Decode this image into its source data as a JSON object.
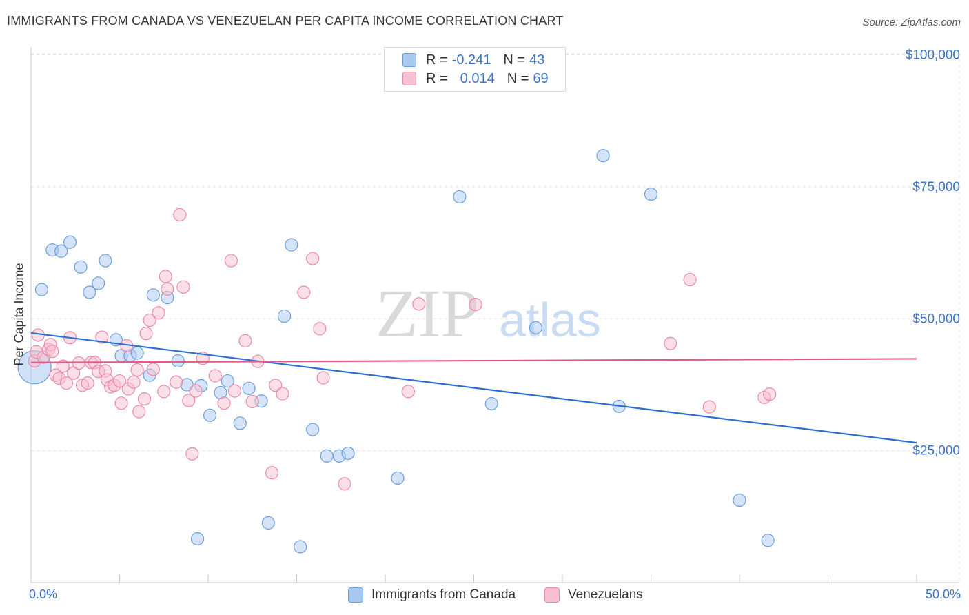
{
  "title": "IMMIGRANTS FROM CANADA VS VENEZUELAN PER CAPITA INCOME CORRELATION CHART",
  "source": "Source: ZipAtlas.com",
  "watermark": {
    "zip": "ZIP",
    "atlas": "atlas"
  },
  "legend": {
    "rows": [
      {
        "r_label": "R =",
        "r_value": "-0.241",
        "n_label": "N =",
        "n_value": "43",
        "color": "#a9c8f0"
      },
      {
        "r_label": "R =",
        "r_value": "0.014",
        "n_label": "N =",
        "n_value": "69",
        "color": "#f7bfd0"
      }
    ]
  },
  "bottom_legend": {
    "canada": "Immigrants from Canada",
    "venezuelans": "Venezuelans"
  },
  "axis": {
    "x_min_label": "0.0%",
    "x_max_label": "50.0%",
    "y_title": "Per Capita Income",
    "y_ticks": [
      {
        "value": 25000,
        "label": "$25,000"
      },
      {
        "value": 50000,
        "label": "$50,000"
      },
      {
        "value": 75000,
        "label": "$75,000"
      },
      {
        "value": 100000,
        "label": "$100,000"
      }
    ]
  },
  "chart_data": {
    "type": "scatter",
    "title": "IMMIGRANTS FROM CANADA VS VENEZUELAN PER CAPITA INCOME CORRELATION CHART",
    "xlabel": "",
    "ylabel": "Per Capita Income",
    "xlim": [
      0,
      50
    ],
    "ylim": [
      0,
      100000
    ],
    "grid": true,
    "series": [
      {
        "name": "Immigrants from Canada",
        "color": "#a9c8f0",
        "stroke": "#6b9fdc",
        "trend": {
          "x": [
            0,
            50
          ],
          "y": [
            47300,
            26500
          ],
          "color": "#2d6fd0"
        },
        "points": [
          [
            0.2,
            40800
          ],
          [
            0.6,
            55500
          ],
          [
            1.2,
            63000
          ],
          [
            1.7,
            62800
          ],
          [
            2.2,
            64500
          ],
          [
            2.8,
            59800
          ],
          [
            3.3,
            55000
          ],
          [
            3.8,
            56700
          ],
          [
            4.2,
            61000
          ],
          [
            4.8,
            46000
          ],
          [
            5.1,
            43000
          ],
          [
            5.6,
            43000
          ],
          [
            6.0,
            43500
          ],
          [
            6.7,
            39300
          ],
          [
            6.9,
            54500
          ],
          [
            7.7,
            54000
          ],
          [
            8.3,
            42000
          ],
          [
            8.8,
            37500
          ],
          [
            9.4,
            8300
          ],
          [
            9.6,
            37300
          ],
          [
            10.1,
            31700
          ],
          [
            10.7,
            36000
          ],
          [
            11.1,
            38200
          ],
          [
            11.8,
            30200
          ],
          [
            12.3,
            36800
          ],
          [
            13.0,
            34400
          ],
          [
            13.4,
            11300
          ],
          [
            14.3,
            50500
          ],
          [
            14.7,
            64000
          ],
          [
            15.2,
            6800
          ],
          [
            15.9,
            29000
          ],
          [
            16.7,
            24000
          ],
          [
            17.4,
            24000
          ],
          [
            17.9,
            24500
          ],
          [
            20.7,
            19800
          ],
          [
            24.2,
            73100
          ],
          [
            26.0,
            33900
          ],
          [
            28.5,
            48300
          ],
          [
            32.3,
            80900
          ],
          [
            33.2,
            33400
          ],
          [
            35.0,
            73600
          ],
          [
            40.0,
            15600
          ],
          [
            41.6,
            8000
          ]
        ]
      },
      {
        "name": "Venezuelans",
        "color": "#f7bfd0",
        "stroke": "#ea8aa8",
        "trend": {
          "x": [
            0,
            50
          ],
          "y": [
            41700,
            42400
          ],
          "color": "#e3598a"
        },
        "points": [
          [
            0.2,
            42000
          ],
          [
            0.3,
            43700
          ],
          [
            0.4,
            46900
          ],
          [
            0.7,
            42700
          ],
          [
            1.0,
            44200
          ],
          [
            1.1,
            45100
          ],
          [
            1.2,
            43800
          ],
          [
            1.4,
            39300
          ],
          [
            1.6,
            38700
          ],
          [
            1.8,
            41000
          ],
          [
            2.0,
            37800
          ],
          [
            2.2,
            46400
          ],
          [
            2.4,
            39700
          ],
          [
            2.7,
            41600
          ],
          [
            2.9,
            37400
          ],
          [
            3.2,
            37800
          ],
          [
            3.4,
            41700
          ],
          [
            3.6,
            41700
          ],
          [
            3.8,
            40000
          ],
          [
            4.0,
            46500
          ],
          [
            4.2,
            40100
          ],
          [
            4.3,
            38400
          ],
          [
            4.5,
            37100
          ],
          [
            4.7,
            37400
          ],
          [
            5.0,
            38200
          ],
          [
            5.1,
            34000
          ],
          [
            5.4,
            44900
          ],
          [
            5.5,
            36700
          ],
          [
            5.8,
            38000
          ],
          [
            6.0,
            40300
          ],
          [
            6.1,
            32400
          ],
          [
            6.4,
            34800
          ],
          [
            6.5,
            47200
          ],
          [
            6.7,
            49700
          ],
          [
            6.9,
            40400
          ],
          [
            7.2,
            51100
          ],
          [
            7.5,
            36200
          ],
          [
            7.6,
            58000
          ],
          [
            7.7,
            55600
          ],
          [
            8.2,
            38000
          ],
          [
            8.4,
            69700
          ],
          [
            8.6,
            56000
          ],
          [
            8.9,
            34500
          ],
          [
            9.1,
            24400
          ],
          [
            9.3,
            36300
          ],
          [
            9.7,
            42500
          ],
          [
            10.4,
            39200
          ],
          [
            10.9,
            34000
          ],
          [
            11.3,
            61000
          ],
          [
            11.5,
            36300
          ],
          [
            12.1,
            45800
          ],
          [
            12.5,
            34300
          ],
          [
            12.8,
            41900
          ],
          [
            13.6,
            20800
          ],
          [
            13.8,
            37400
          ],
          [
            14.2,
            35800
          ],
          [
            15.4,
            55000
          ],
          [
            15.9,
            61400
          ],
          [
            16.3,
            48100
          ],
          [
            16.5,
            38800
          ],
          [
            17.7,
            18700
          ],
          [
            21.3,
            36200
          ],
          [
            21.9,
            52800
          ],
          [
            25.1,
            52700
          ],
          [
            36.1,
            45300
          ],
          [
            37.2,
            57400
          ],
          [
            38.3,
            33300
          ],
          [
            41.4,
            35100
          ],
          [
            41.7,
            35700
          ]
        ]
      }
    ]
  }
}
